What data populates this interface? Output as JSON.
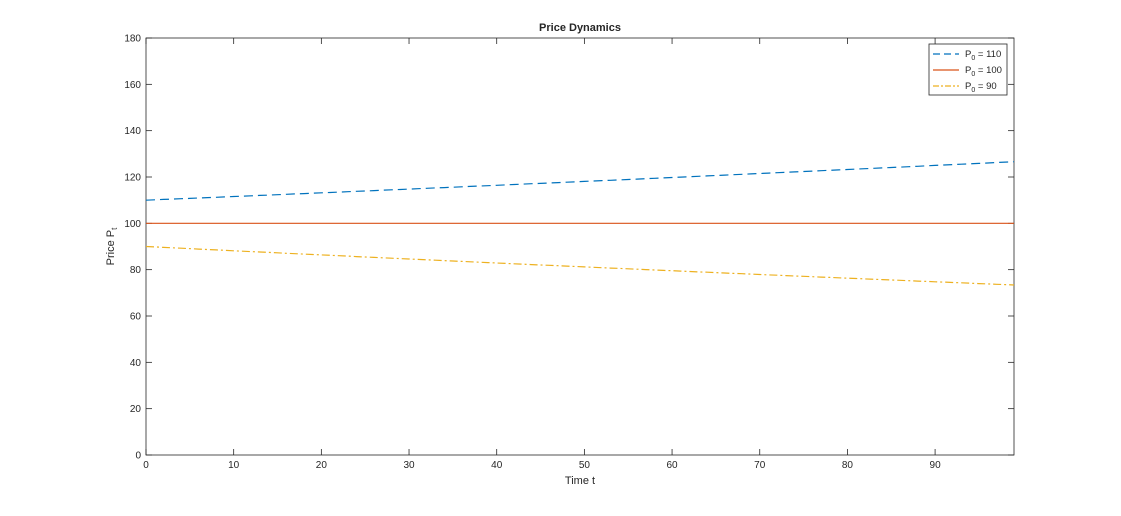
{
  "chart_data": {
    "type": "line",
    "title": "Price Dynamics",
    "xlabel": "Time t",
    "ylabel": {
      "main": "Price P",
      "sub": "t"
    },
    "xlim": [
      0,
      99
    ],
    "ylim": [
      0,
      180
    ],
    "xticks": [
      0,
      10,
      20,
      30,
      40,
      50,
      60,
      70,
      80,
      90
    ],
    "yticks": [
      0,
      20,
      40,
      60,
      80,
      100,
      120,
      140,
      160,
      180
    ],
    "grid": false,
    "legend_position": "top-right",
    "series": [
      {
        "name": {
          "main": "P",
          "sub": "0",
          "suffix": " = 110"
        },
        "style": "dashed",
        "color": "#0072BD",
        "start": 110,
        "end": 126.6
      },
      {
        "name": {
          "main": "P",
          "sub": "0",
          "suffix": " = 100"
        },
        "style": "solid",
        "color": "#D95319",
        "start": 100,
        "end": 100
      },
      {
        "name": {
          "main": "P",
          "sub": "0",
          "suffix": " = 90"
        },
        "style": "dashdot",
        "color": "#EDB120",
        "start": 90,
        "end": 73.4
      }
    ]
  }
}
